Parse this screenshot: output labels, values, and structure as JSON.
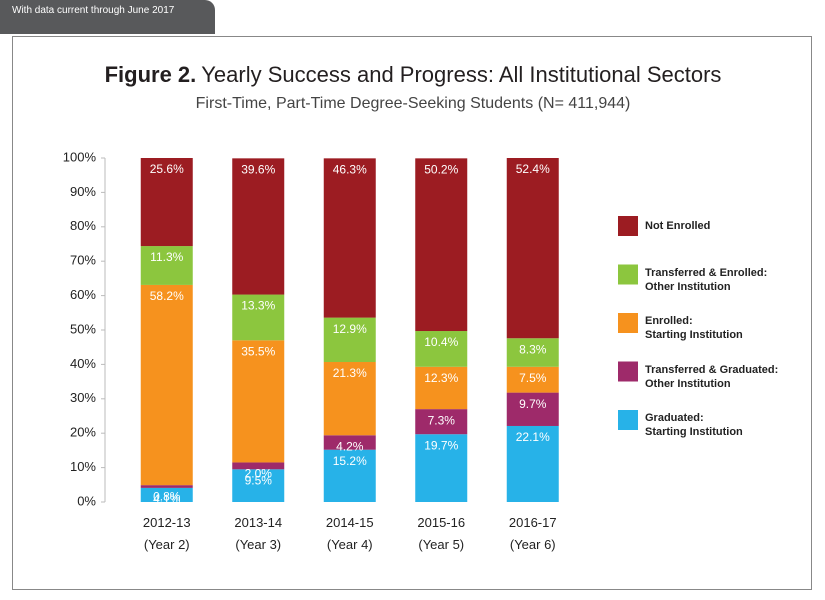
{
  "header": {
    "tab": "With data current through June 2017"
  },
  "chart_data": {
    "type": "stacked_bar",
    "title_label": "Figure 2.",
    "title": "Yearly Success and Progress: All Institutional Sectors",
    "subtitle": "First-Time, Part-Time Degree-Seeking Students (N= 411,944)",
    "categories": [
      "2012-13\n(Year 2)",
      "2013-14\n(Year 3)",
      "2014-15\n(Year 4)",
      "2015-16\n(Year 5)",
      "2016-17\n(Year 6)"
    ],
    "ylim": [
      0,
      100
    ],
    "yticks": [
      {
        "value": 0,
        "label": "0%"
      },
      {
        "value": 10,
        "label": "10%"
      },
      {
        "value": 20,
        "label": "20%"
      },
      {
        "value": 30,
        "label": "30%"
      },
      {
        "value": 40,
        "label": "40%"
      },
      {
        "value": 50,
        "label": "50%"
      },
      {
        "value": 60,
        "label": "60%"
      },
      {
        "value": 70,
        "label": "70%"
      },
      {
        "value": 80,
        "label": "80%"
      },
      {
        "value": 90,
        "label": "90%"
      },
      {
        "value": 100,
        "label": "100%"
      }
    ],
    "legend": "right",
    "series": [
      {
        "name": "Graduated:\nStarting Institution",
        "color": "#27b2e8",
        "values": [
          4.1,
          9.5,
          15.2,
          19.7,
          22.1
        ],
        "value_labels": [
          "4.1%",
          "9.5%",
          "15.2%",
          "19.7%",
          "22.1%"
        ]
      },
      {
        "name": "Transferred & Graduated:\nOther Institution",
        "color": "#9e2a6a",
        "values": [
          0.8,
          2.0,
          4.2,
          7.3,
          9.7
        ],
        "value_labels": [
          "0.8%",
          "2.0%",
          "4.2%",
          "7.3%",
          "9.7%"
        ]
      },
      {
        "name": "Enrolled:\nStarting Institution",
        "color": "#f6921e",
        "values": [
          58.2,
          35.5,
          21.3,
          12.3,
          7.5
        ],
        "value_labels": [
          "58.2%",
          "35.5%",
          "21.3%",
          "12.3%",
          "7.5%"
        ]
      },
      {
        "name": "Transferred & Enrolled:\nOther Institution",
        "color": "#8cc63e",
        "values": [
          11.3,
          13.3,
          12.9,
          10.4,
          8.3
        ],
        "value_labels": [
          "11.3%",
          "13.3%",
          "12.9%",
          "10.4%",
          "8.3%"
        ]
      },
      {
        "name": "Not Enrolled",
        "color": "#9c1c22",
        "values": [
          25.6,
          39.6,
          46.3,
          50.2,
          52.4
        ],
        "value_labels": [
          "25.6%",
          "39.6%",
          "46.3%",
          "50.2%",
          "52.4%"
        ]
      }
    ]
  }
}
